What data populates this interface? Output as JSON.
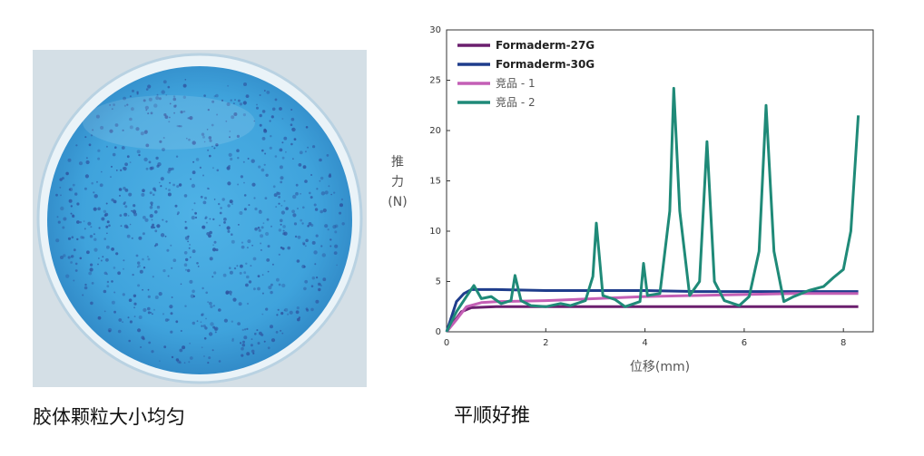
{
  "captions": {
    "left": "胶体颗粒大小均匀",
    "right": "平顺好推"
  },
  "photo": {
    "colors": {
      "dish_fill": "#3fa3dc",
      "dots": "#2d4f9c",
      "background": "#d4dfe6"
    }
  },
  "chart_data": {
    "type": "line",
    "xlabel": "位移(mm)",
    "ylabel": [
      "推",
      "力",
      "(N)"
    ],
    "xlim": [
      0,
      8.6
    ],
    "ylim": [
      0,
      30
    ],
    "xticks": [
      0,
      2,
      4,
      6,
      8
    ],
    "yticks": [
      0,
      5,
      10,
      15,
      20,
      25,
      30
    ],
    "legend_position": "top-left",
    "series": [
      {
        "name": "Formaderm-27G",
        "color": "#6b1f6e",
        "x": [
          0,
          0.15,
          0.3,
          0.5,
          1.0,
          2.0,
          3.0,
          4.0,
          5.0,
          6.0,
          7.0,
          8.0,
          8.3
        ],
        "y": [
          0,
          1.0,
          2.0,
          2.4,
          2.5,
          2.5,
          2.5,
          2.5,
          2.5,
          2.5,
          2.5,
          2.5,
          2.5
        ]
      },
      {
        "name": "Formaderm-30G",
        "color": "#1f3d8c",
        "x": [
          0,
          0.1,
          0.2,
          0.35,
          0.5,
          1.0,
          2.0,
          3.0,
          4.0,
          5.0,
          6.0,
          7.0,
          8.0,
          8.3
        ],
        "y": [
          0,
          1.5,
          3.0,
          3.8,
          4.2,
          4.2,
          4.1,
          4.1,
          4.1,
          4.0,
          4.0,
          4.0,
          4.0,
          4.0
        ]
      },
      {
        "name": "竞品 - 1",
        "color": "#c45fb5",
        "x": [
          0,
          0.2,
          0.4,
          0.7,
          1.0,
          2.0,
          3.0,
          4.0,
          5.0,
          6.0,
          7.0,
          8.0,
          8.3
        ],
        "y": [
          0,
          1.2,
          2.5,
          2.9,
          3.0,
          3.1,
          3.3,
          3.5,
          3.6,
          3.7,
          3.8,
          3.8,
          3.8
        ]
      },
      {
        "name": "竞品 - 2",
        "color": "#1f8a78",
        "x": [
          0,
          0.2,
          0.4,
          0.55,
          0.7,
          0.9,
          1.1,
          1.3,
          1.38,
          1.5,
          1.7,
          2.0,
          2.3,
          2.5,
          2.8,
          2.95,
          3.02,
          3.15,
          3.4,
          3.6,
          3.9,
          3.97,
          4.05,
          4.3,
          4.5,
          4.58,
          4.7,
          4.9,
          5.1,
          5.25,
          5.4,
          5.6,
          5.9,
          6.1,
          6.3,
          6.44,
          6.6,
          6.8,
          7.0,
          7.3,
          7.6,
          7.8,
          8.0,
          8.15,
          8.3
        ],
        "y": [
          0,
          2.0,
          3.5,
          4.6,
          3.3,
          3.5,
          2.8,
          3.1,
          5.6,
          3.1,
          2.6,
          2.5,
          2.8,
          2.6,
          3.1,
          5.5,
          10.8,
          3.6,
          3.2,
          2.5,
          3.0,
          6.8,
          3.6,
          3.8,
          12.0,
          24.2,
          12.0,
          3.6,
          5.0,
          18.9,
          5.0,
          3.1,
          2.6,
          3.5,
          8.0,
          22.5,
          8.0,
          3.0,
          3.5,
          4.1,
          4.5,
          5.4,
          6.2,
          10.0,
          21.5
        ]
      }
    ]
  }
}
